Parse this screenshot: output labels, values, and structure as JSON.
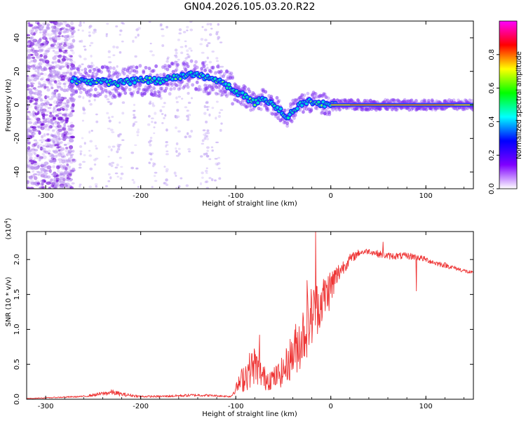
{
  "figure": {
    "title": "GN04.2026.105.03.20.R22"
  },
  "chart_data": [
    {
      "type": "heatmap",
      "title": "GN04.2026.105.03.20.R22",
      "xlabel": "Height of straight line (km)",
      "ylabel": "Frequency (Hz)",
      "xlim": [
        -320,
        150
      ],
      "ylim": [
        -50,
        50
      ],
      "xticks": [
        -300,
        -200,
        -100,
        0,
        100
      ],
      "yticks": [
        -40,
        -20,
        0,
        20,
        40
      ],
      "colorbar": {
        "label": "Normalized spectral amplitude",
        "range": [
          0,
          1
        ],
        "ticks": [
          0.0,
          0.2,
          0.4,
          0.6,
          0.8
        ],
        "tick_labels": [
          "0.0",
          "0.2",
          "0.4",
          "0.6",
          "0.8"
        ],
        "colors": [
          "#ffffff",
          "#7f00ff",
          "#0000ff",
          "#00ffff",
          "#00ff00",
          "#ffff00",
          "#ff0000",
          "#ff00ff"
        ]
      },
      "ridge_x": [
        -275,
        -260,
        -240,
        -225,
        -210,
        -195,
        -180,
        -160,
        -140,
        -125,
        -115,
        -100,
        -90,
        -80,
        -70,
        -60,
        -50,
        -45,
        -40,
        -30,
        -20,
        -10,
        0,
        50,
        100,
        150
      ],
      "ridge_y": [
        15,
        14,
        14,
        13,
        14,
        15,
        14,
        17,
        18,
        15,
        14,
        8,
        5,
        1,
        4,
        0,
        -5,
        -8,
        -3,
        1,
        2,
        1,
        0,
        0,
        0,
        0
      ]
    },
    {
      "type": "line",
      "xlabel": "Height of straight line (km)",
      "ylabel": "SNR (10 * v/v)",
      "exponent": "4",
      "xlim": [
        -320,
        150
      ],
      "ylim": [
        0,
        2.4
      ],
      "xticks": [
        -300,
        -200,
        -100,
        0,
        100
      ],
      "yticks": [
        0.0,
        0.5,
        1.0,
        1.5,
        2.0
      ],
      "ytick_labels": [
        "0.0",
        "0.5",
        "1.0",
        "1.5",
        "2.0"
      ],
      "line_color": "#ee3333",
      "x": [
        -320,
        -300,
        -280,
        -260,
        -240,
        -230,
        -220,
        -200,
        -180,
        -160,
        -140,
        -120,
        -105,
        -100,
        -90,
        -80,
        -70,
        -60,
        -50,
        -40,
        -30,
        -20,
        -10,
        0,
        10,
        20,
        30,
        40,
        50,
        60,
        70,
        80,
        90,
        100,
        110,
        120,
        130,
        140,
        150
      ],
      "y": [
        0.01,
        0.02,
        0.03,
        0.04,
        0.08,
        0.1,
        0.07,
        0.04,
        0.04,
        0.05,
        0.06,
        0.05,
        0.04,
        0.15,
        0.35,
        0.5,
        0.3,
        0.3,
        0.4,
        0.65,
        0.9,
        1.2,
        1.4,
        1.6,
        1.85,
        2.0,
        2.1,
        2.12,
        2.08,
        2.05,
        2.05,
        2.05,
        2.04,
        2.0,
        1.95,
        1.92,
        1.88,
        1.84,
        1.8
      ],
      "noise": [
        0.004,
        0.006,
        0.01,
        0.012,
        0.03,
        0.04,
        0.03,
        0.015,
        0.015,
        0.02,
        0.02,
        0.015,
        0.015,
        0.06,
        0.25,
        0.28,
        0.18,
        0.16,
        0.22,
        0.35,
        0.45,
        0.45,
        0.35,
        0.3,
        0.12,
        0.08,
        0.05,
        0.04,
        0.05,
        0.05,
        0.05,
        0.05,
        0.05,
        0.04,
        0.04,
        0.04,
        0.03,
        0.03,
        0.03
      ],
      "spikes": [
        {
          "x": -16,
          "y": 2.4
        },
        {
          "x": -25,
          "y": 1.7
        },
        {
          "x": -75,
          "y": 0.92
        },
        {
          "x": 90,
          "y": 1.55
        },
        {
          "x": 55,
          "y": 2.25
        }
      ]
    }
  ]
}
